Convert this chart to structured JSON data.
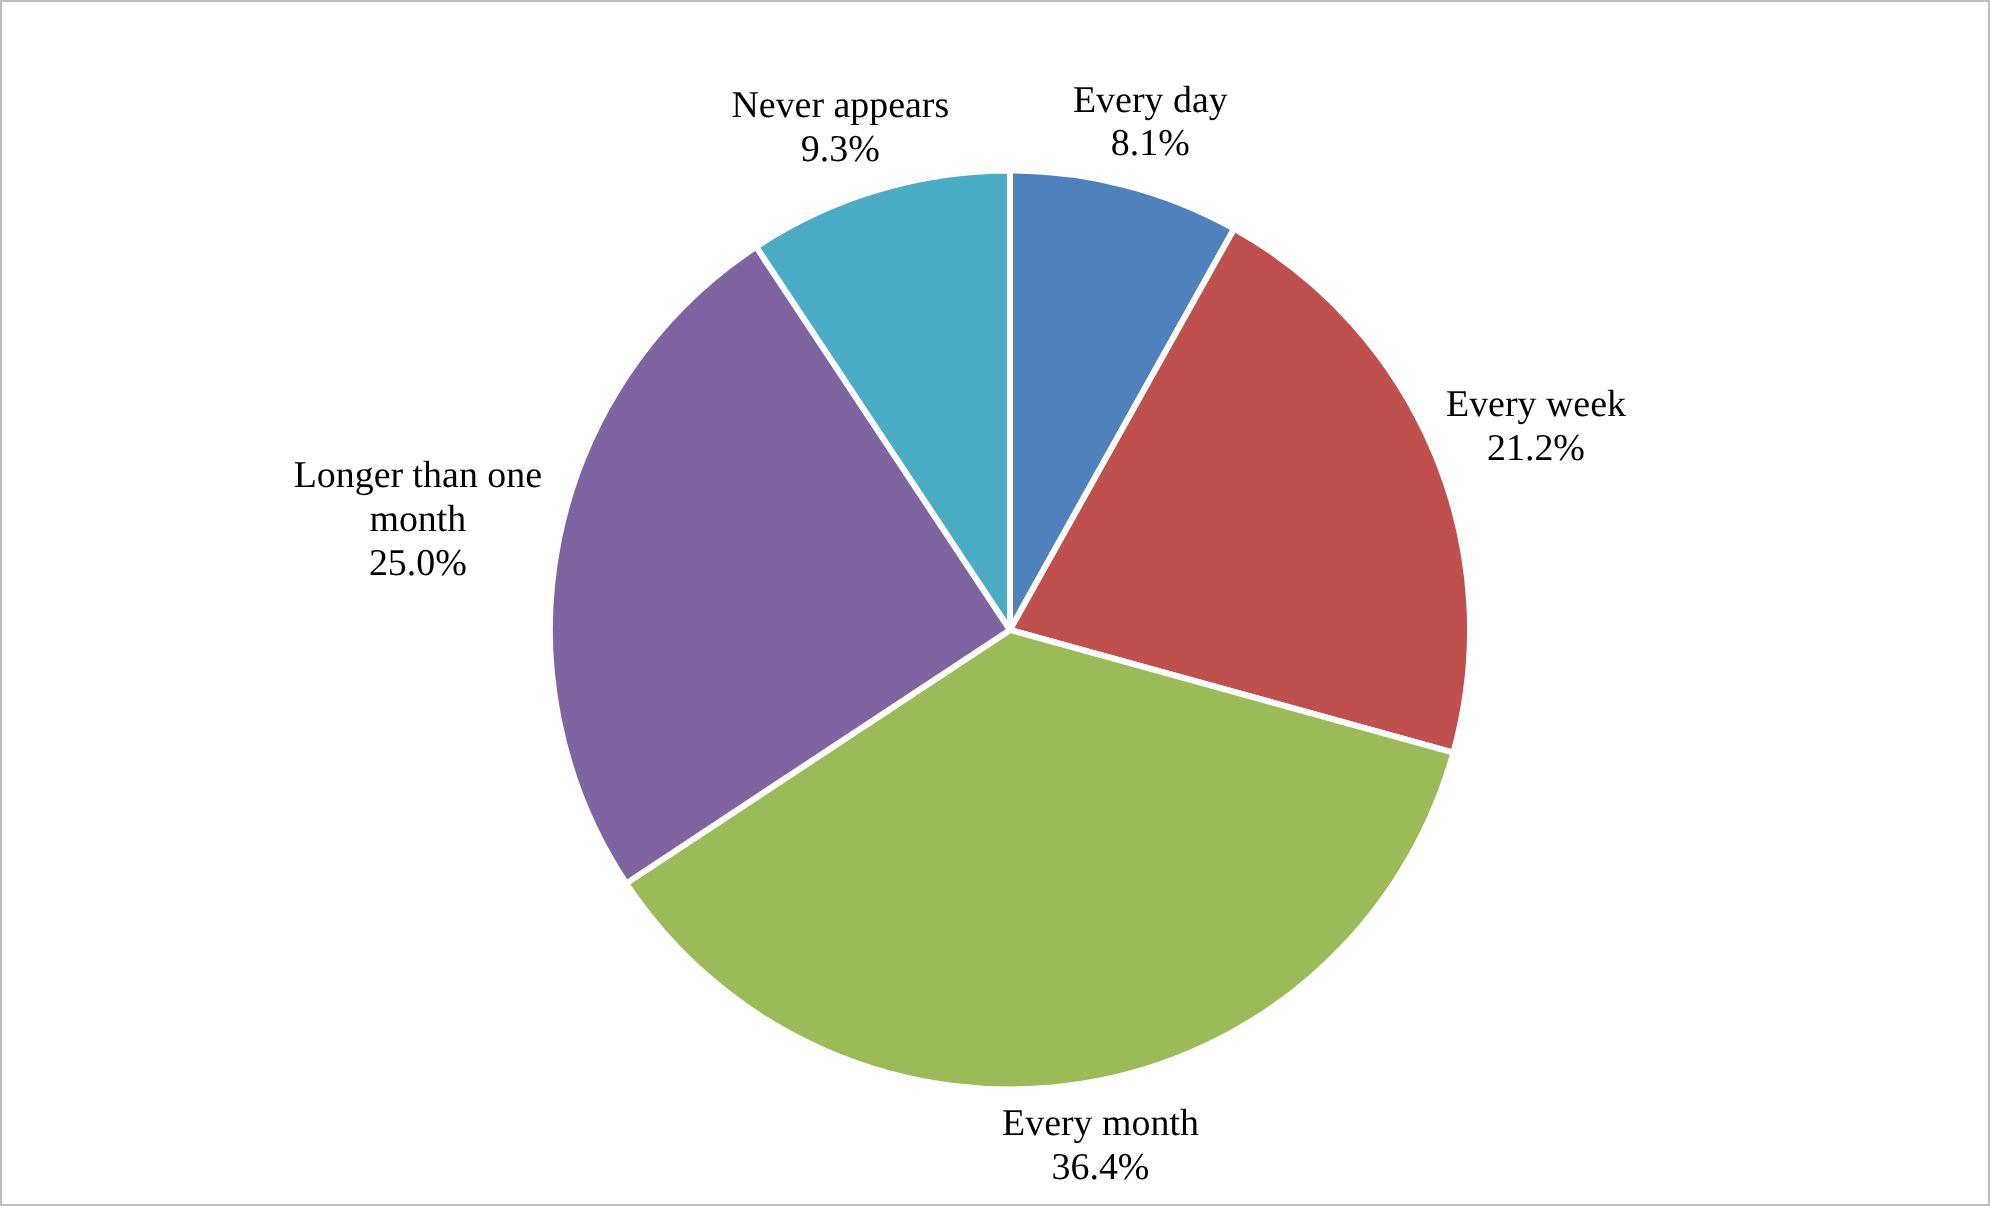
{
  "chart_data": {
    "type": "pie",
    "categories": [
      "Every day",
      "Every week",
      "Every month",
      "Longer than one month",
      "Never appears"
    ],
    "values": [
      8.1,
      21.2,
      36.4,
      25.0,
      9.3
    ],
    "colors": [
      "#4f81bd",
      "#c0504d",
      "#9bbb59",
      "#8064a2",
      "#4bacc6"
    ],
    "value_labels": [
      "8.1%",
      "21.2%",
      "36.4%",
      "25.0%",
      "9.3%"
    ],
    "legend": false
  }
}
